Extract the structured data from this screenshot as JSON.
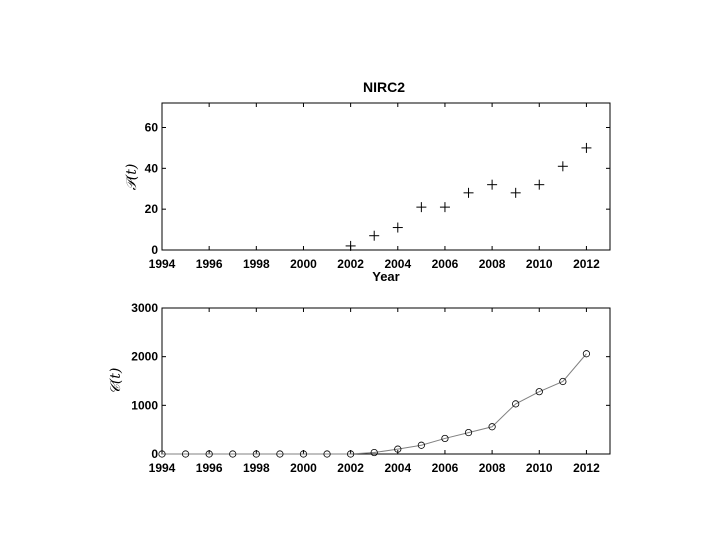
{
  "chart_data": [
    {
      "type": "scatter",
      "title": "NIRC2",
      "xlabel": "Year",
      "ylabel": "𝒫(t)",
      "xlim": [
        1994,
        2013
      ],
      "ylim": [
        0,
        72
      ],
      "xticks": [
        1994,
        1996,
        1998,
        2000,
        2002,
        2004,
        2006,
        2008,
        2010,
        2012
      ],
      "yticks": [
        0,
        20,
        40,
        60
      ],
      "marker": "plus",
      "series": [
        {
          "x": [
            2002,
            2003,
            2004,
            2005,
            2006,
            2007,
            2008,
            2009,
            2010,
            2011,
            2012
          ],
          "y": [
            2,
            7,
            11,
            21,
            21,
            28,
            32,
            28,
            32,
            41,
            50
          ]
        }
      ]
    },
    {
      "type": "line",
      "title": "",
      "xlabel": "",
      "ylabel": "𝒞(t)",
      "xlim": [
        1994,
        2013
      ],
      "ylim": [
        0,
        3000
      ],
      "xticks": [
        1994,
        1996,
        1998,
        2000,
        2002,
        2004,
        2006,
        2008,
        2010,
        2012
      ],
      "yticks": [
        0,
        1000,
        2000,
        3000
      ],
      "marker": "circle",
      "line_color": "#808080",
      "series": [
        {
          "x": [
            1994,
            1995,
            1996,
            1997,
            1998,
            1999,
            2000,
            2001,
            2002,
            2003,
            2004,
            2005,
            2006,
            2007,
            2008,
            2009,
            2010,
            2011,
            2012
          ],
          "y": [
            0,
            0,
            0,
            0,
            0,
            0,
            0,
            0,
            0,
            30,
            100,
            180,
            320,
            440,
            560,
            1030,
            1280,
            1490,
            2060
          ]
        }
      ]
    }
  ]
}
